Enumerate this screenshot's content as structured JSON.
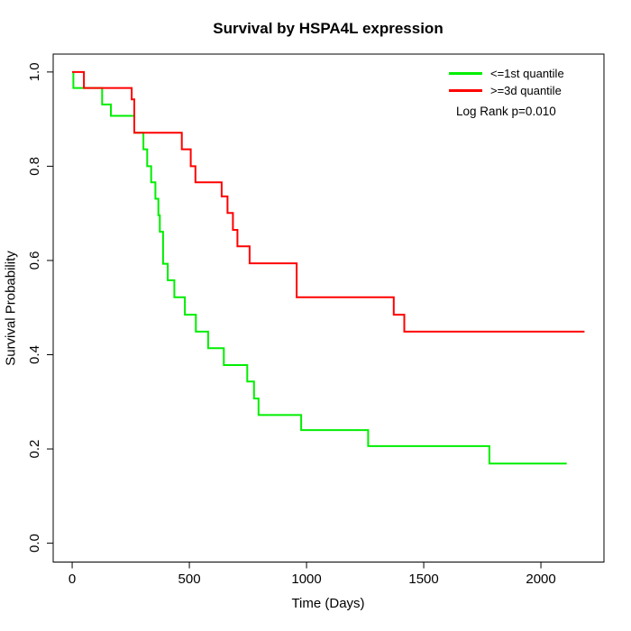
{
  "chart_data": {
    "type": "line",
    "subtype": "kaplan-meier-step",
    "title": "Survival by HSPA4L expression",
    "xlabel": "Time (Days)",
    "ylabel": "Survival Probability",
    "xlim": [
      -81,
      2269
    ],
    "ylim": [
      -0.04,
      1.038
    ],
    "x_ticks": [
      0,
      500,
      1000,
      1500,
      2000
    ],
    "x_tick_labels": [
      "0",
      "500",
      "1000",
      "1500",
      "2000"
    ],
    "y_ticks": [
      0.0,
      0.2,
      0.4,
      0.6,
      0.8,
      1.0
    ],
    "y_tick_labels": [
      "0.0",
      "0.2",
      "0.4",
      "0.6",
      "0.8",
      "1.0"
    ],
    "grid": false,
    "legend_position": "top-right",
    "annotation": "Log Rank p=0.010",
    "series": [
      {
        "name": "<=1st quantile",
        "color": "#00EE00",
        "end_time": 2110,
        "steps": [
          [
            0,
            1.0
          ],
          [
            5,
            0.966
          ],
          [
            128,
            0.931
          ],
          [
            165,
            0.907
          ],
          [
            265,
            0.871
          ],
          [
            304,
            0.836
          ],
          [
            320,
            0.8
          ],
          [
            337,
            0.766
          ],
          [
            355,
            0.731
          ],
          [
            368,
            0.696
          ],
          [
            374,
            0.661
          ],
          [
            388,
            0.593
          ],
          [
            408,
            0.558
          ],
          [
            436,
            0.522
          ],
          [
            481,
            0.485
          ],
          [
            528,
            0.449
          ],
          [
            580,
            0.414
          ],
          [
            647,
            0.378
          ],
          [
            747,
            0.343
          ],
          [
            776,
            0.307
          ],
          [
            795,
            0.272
          ],
          [
            977,
            0.24
          ],
          [
            1263,
            0.206
          ],
          [
            1780,
            0.169
          ]
        ]
      },
      {
        "name": ">=3d quantile",
        "color": "#FF0000",
        "end_time": 2186,
        "steps": [
          [
            0,
            1.0
          ],
          [
            50,
            0.966
          ],
          [
            254,
            0.942
          ],
          [
            265,
            0.871
          ],
          [
            468,
            0.836
          ],
          [
            506,
            0.8
          ],
          [
            526,
            0.766
          ],
          [
            638,
            0.736
          ],
          [
            663,
            0.701
          ],
          [
            686,
            0.665
          ],
          [
            705,
            0.63
          ],
          [
            757,
            0.594
          ],
          [
            958,
            0.522
          ],
          [
            1372,
            0.485
          ],
          [
            1417,
            0.449
          ]
        ]
      }
    ]
  }
}
